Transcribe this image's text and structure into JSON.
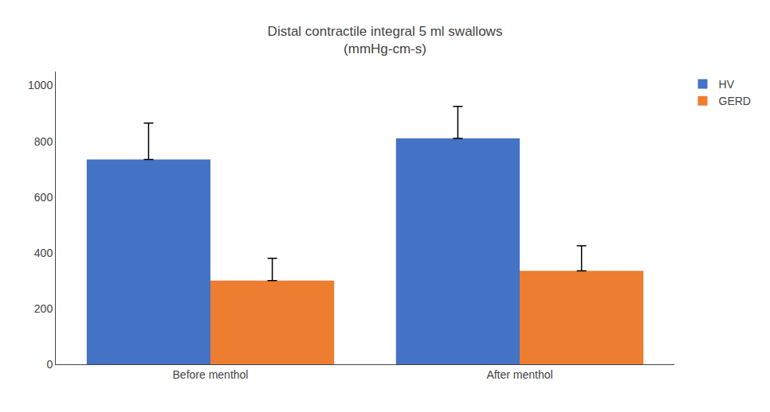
{
  "chart_data": {
    "type": "bar",
    "title": "Distal contractile integral 5 ml swallows\n(mmHg-cm-s)",
    "categories": [
      "Before menthol",
      "After menthol"
    ],
    "series": [
      {
        "name": "HV",
        "color": "#4472C4",
        "values": [
          735,
          810
        ],
        "errors": [
          130,
          115
        ]
      },
      {
        "name": "GERD",
        "color": "#ED7D31",
        "values": [
          300,
          335
        ],
        "errors": [
          80,
          90
        ]
      }
    ],
    "ylim": [
      0,
      1050
    ],
    "yticks": [
      0,
      200,
      400,
      600,
      800,
      1000
    ],
    "grid": false,
    "legend": "upper right"
  }
}
